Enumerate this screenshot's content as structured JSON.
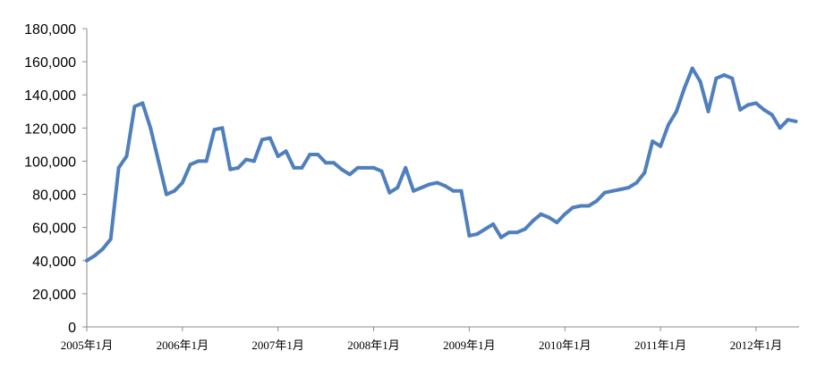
{
  "chart_data": {
    "type": "line",
    "title": "",
    "xlabel": "",
    "ylabel": "",
    "ylim": [
      0,
      180000
    ],
    "yticks": [
      "0",
      "20,000",
      "40,000",
      "60,000",
      "80,000",
      "100,000",
      "120,000",
      "140,000",
      "160,000",
      "180,000"
    ],
    "xticks": [
      "2005年1月",
      "2006年1月",
      "2007年1月",
      "2008年1月",
      "2009年1月",
      "2010年1月",
      "2011年1月",
      "2012年1月"
    ],
    "x_range": [
      "2005-01",
      "2012-06"
    ],
    "grid": false,
    "legend": "none",
    "line_color": "#4F7FBD",
    "series": [
      {
        "x": [
          "2005-01",
          "2005-02",
          "2005-03",
          "2005-04",
          "2005-05",
          "2005-06",
          "2005-07",
          "2005-08",
          "2005-09",
          "2005-10",
          "2005-11",
          "2005-12",
          "2006-01",
          "2006-02",
          "2006-03",
          "2006-04",
          "2006-05",
          "2006-06",
          "2006-07",
          "2006-08",
          "2006-09",
          "2006-10",
          "2006-11",
          "2006-12",
          "2007-01",
          "2007-02",
          "2007-03",
          "2007-04",
          "2007-05",
          "2007-06",
          "2007-07",
          "2007-08",
          "2007-09",
          "2007-10",
          "2007-11",
          "2007-12",
          "2008-01",
          "2008-02",
          "2008-03",
          "2008-04",
          "2008-05",
          "2008-06",
          "2008-07",
          "2008-08",
          "2008-09",
          "2008-10",
          "2008-11",
          "2008-12",
          "2009-01",
          "2009-02",
          "2009-03",
          "2009-04",
          "2009-05",
          "2009-06",
          "2009-07",
          "2009-08",
          "2009-09",
          "2009-10",
          "2009-11",
          "2009-12",
          "2010-01",
          "2010-02",
          "2010-03",
          "2010-04",
          "2010-05",
          "2010-06",
          "2010-07",
          "2010-08",
          "2010-09",
          "2010-10",
          "2010-11",
          "2010-12",
          "2011-01",
          "2011-02",
          "2011-03",
          "2011-04",
          "2011-05",
          "2011-06",
          "2011-07",
          "2011-08",
          "2011-09",
          "2011-10",
          "2011-11",
          "2011-12",
          "2012-01",
          "2012-02",
          "2012-03",
          "2012-04",
          "2012-05",
          "2012-06"
        ],
        "values": [
          40000,
          43000,
          47000,
          53000,
          96000,
          103000,
          133000,
          135000,
          120000,
          100000,
          80000,
          82000,
          87000,
          98000,
          100000,
          100000,
          119000,
          120000,
          95000,
          96000,
          101000,
          100000,
          113000,
          114000,
          103000,
          106000,
          96000,
          96000,
          104000,
          104000,
          99000,
          99000,
          95000,
          92000,
          96000,
          96000,
          96000,
          94000,
          81000,
          84000,
          96000,
          82000,
          84000,
          86000,
          87000,
          85000,
          82000,
          82000,
          55000,
          56000,
          59000,
          62000,
          54000,
          57000,
          57000,
          59000,
          64000,
          68000,
          66000,
          63000,
          68000,
          72000,
          73000,
          73000,
          76000,
          81000,
          82000,
          83000,
          84000,
          87000,
          93000,
          112000,
          109000,
          122000,
          130000,
          144000,
          156000,
          148000,
          130000,
          150000,
          152000,
          150000,
          131000,
          134000,
          135000,
          131000,
          128000,
          120000,
          125000,
          124000
        ]
      }
    ]
  }
}
